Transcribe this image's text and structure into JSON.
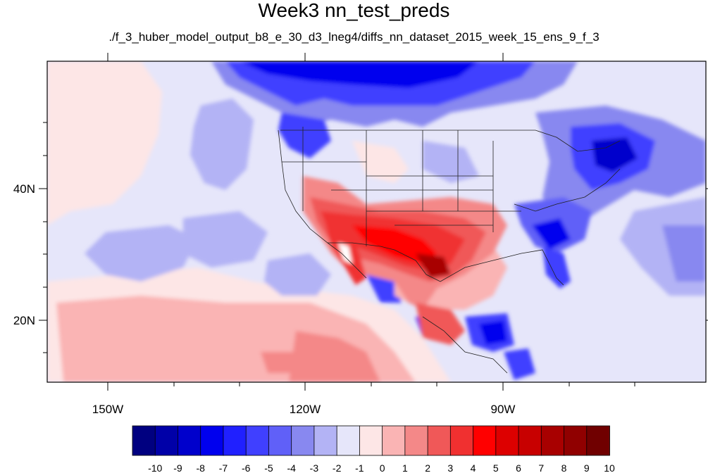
{
  "title": "Week3 nn_test_preds",
  "subtitle": "./f_3_huber_model_output_b8_e_30_d3_lneg4/diffs_nn_dataset_2015_week_15_ens_9_f_3",
  "lon_labels": [
    "150W",
    "120W",
    "90W"
  ],
  "lat_labels": [
    "40N",
    "20N"
  ],
  "colorbar": {
    "colors": [
      "#000080",
      "#0000a8",
      "#0000cc",
      "#0000ee",
      "#2020ff",
      "#4040ff",
      "#6060f8",
      "#8888f0",
      "#b3b3f5",
      "#e6e6fa",
      "#fde6e6",
      "#fab4b4",
      "#f48888",
      "#f05858",
      "#f03030",
      "#ff0000",
      "#dd0000",
      "#c80000",
      "#a80000",
      "#900000",
      "#700000"
    ],
    "labels": [
      "-10",
      "-9",
      "-8",
      "-7",
      "-6",
      "-5",
      "-4",
      "-3",
      "-2",
      "-1",
      "0",
      "1",
      "2",
      "3",
      "4",
      "5",
      "6",
      "7",
      "8",
      "9",
      "10"
    ]
  }
}
